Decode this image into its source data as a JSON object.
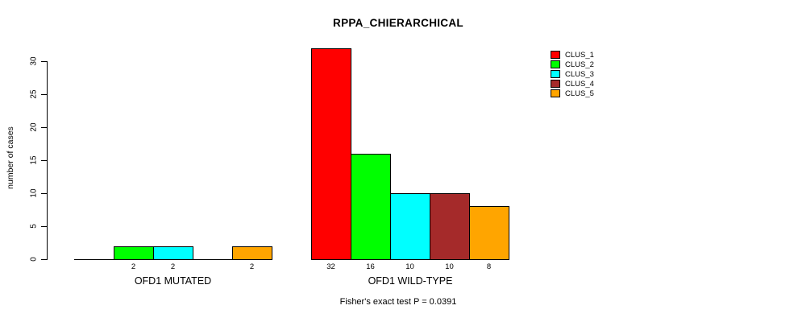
{
  "chart_data": {
    "type": "bar",
    "title": "RPPA_CHIERARCHICAL",
    "ylabel": "number of cases",
    "xlabel": "",
    "categories": [
      "OFD1 MUTATED",
      "OFD1 WILD-TYPE"
    ],
    "series": [
      {
        "name": "CLUS_1",
        "color": "#FF0000",
        "values": [
          0,
          32
        ]
      },
      {
        "name": "CLUS_2",
        "color": "#00FF00",
        "values": [
          2,
          16
        ]
      },
      {
        "name": "CLUS_3",
        "color": "#00FFFF",
        "values": [
          2,
          10
        ]
      },
      {
        "name": "CLUS_4",
        "color": "#A52A2A",
        "values": [
          0,
          10
        ]
      },
      {
        "name": "CLUS_5",
        "color": "#FFA500",
        "values": [
          2,
          8
        ]
      }
    ],
    "bar_value_labels": [
      [
        "",
        "2",
        "2",
        "",
        "2"
      ],
      [
        "32",
        "16",
        "10",
        "10",
        "8"
      ]
    ],
    "y_ticks": [
      0,
      5,
      10,
      15,
      20,
      25,
      30
    ],
    "ylim": [
      0,
      32
    ],
    "grid": false,
    "legend_position": "top-right",
    "annotation": "Fisher's exact test P = 0.0391",
    "axis_color": "#000000",
    "background_color": "#FFFFFF"
  }
}
